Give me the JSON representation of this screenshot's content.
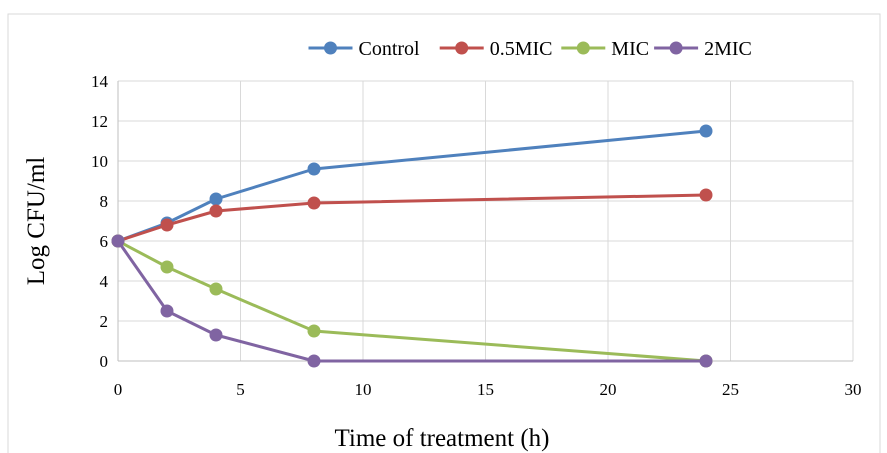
{
  "chart_data": {
    "type": "line",
    "title": "",
    "xlabel": "Time of treatment (h)",
    "ylabel": "Log CFU/ml",
    "xlim": [
      0,
      30
    ],
    "ylim": [
      0,
      14
    ],
    "xticks": [
      0,
      5,
      10,
      15,
      20,
      25,
      30
    ],
    "yticks": [
      0,
      2,
      4,
      6,
      8,
      10,
      12,
      14
    ],
    "grid": true,
    "legend_position": "top",
    "series": [
      {
        "name": "Control",
        "color": "#4f81bd",
        "x": [
          0,
          2,
          4,
          8,
          24
        ],
        "y": [
          6.0,
          6.9,
          8.1,
          9.6,
          11.5
        ]
      },
      {
        "name": "0.5MIC",
        "color": "#c0504d",
        "x": [
          0,
          2,
          4,
          8,
          24
        ],
        "y": [
          6.0,
          6.8,
          7.5,
          7.9,
          8.3
        ]
      },
      {
        "name": "MIC",
        "color": "#9bbb59",
        "x": [
          0,
          2,
          4,
          8,
          24
        ],
        "y": [
          6.0,
          4.7,
          3.6,
          1.5,
          0.0
        ]
      },
      {
        "name": "2MIC",
        "color": "#8064a2",
        "x": [
          0,
          2,
          4,
          8,
          24
        ],
        "y": [
          6.0,
          2.5,
          1.3,
          0.0,
          0.0
        ]
      }
    ]
  }
}
